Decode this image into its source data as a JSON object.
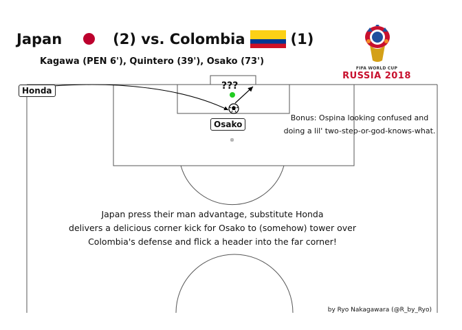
{
  "header": {
    "team1": "Japan",
    "score1": "(2) vs. Colombia",
    "score2": "(1)",
    "scorers": "Kagawa (PEN 6'), Quintero (39'), Osako (73')"
  },
  "logo": {
    "top_text": "FIFA WORLD CUP",
    "main_text": "RUSSIA 2018"
  },
  "labels": {
    "honda": "Honda",
    "osako": "Osako",
    "unknown": "???"
  },
  "bonus_note": {
    "line1": "Bonus: Ospina looking confused and",
    "line2": "doing a lil' two-step-or-god-knows-what."
  },
  "description": {
    "line1": "Japan press their man advantage, substitute Honda",
    "line2": "delivers a delicious corner kick for Osako to (somehow) tower over",
    "line3": "Colombia's defense and flick a header into the far corner!"
  },
  "credit": "by Ryo Nakagawara (@R_by_Ryo)",
  "colors": {
    "japan_red": "#bc002d",
    "colombia_yellow": "#fcd116",
    "colombia_blue": "#003893",
    "colombia_red": "#ce1126",
    "goalkeeper_green": "#22cc22",
    "russia_red": "#c8102e"
  }
}
